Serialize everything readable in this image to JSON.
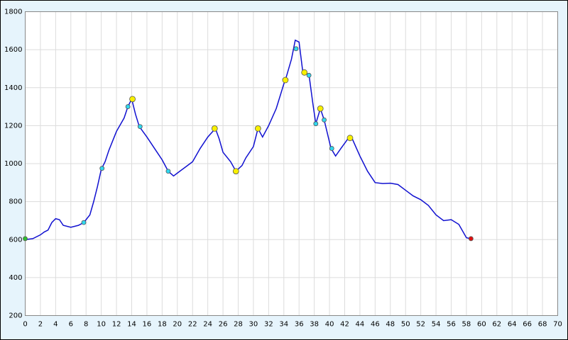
{
  "chart_data": {
    "type": "line",
    "color": "#1010d0",
    "x": [
      0,
      1,
      2,
      2.5,
      3,
      3.5,
      4,
      4.5,
      5,
      6,
      7,
      7.7,
      8.5,
      9,
      9.5,
      10,
      10.5,
      11,
      11.5,
      12,
      13,
      13.5,
      14,
      14.5,
      15,
      16,
      17,
      18,
      18.8,
      19.5,
      20,
      21,
      22,
      23,
      24,
      25,
      25.5,
      26,
      27,
      27.7,
      28.5,
      29,
      30,
      30.6,
      31.2,
      32,
      33,
      34,
      34.2,
      35,
      35.5,
      36,
      36.5,
      37.3,
      37.8,
      38.2,
      38.8,
      39.3,
      40.2,
      40.8,
      41.5,
      42.5,
      43,
      44,
      45,
      46,
      47,
      48,
      49,
      50,
      51,
      52,
      53,
      54,
      55,
      56,
      57,
      58,
      58.5
    ],
    "values": [
      600,
      605,
      625,
      640,
      650,
      690,
      710,
      705,
      675,
      665,
      675,
      690,
      730,
      800,
      880,
      970,
      1010,
      1070,
      1120,
      1170,
      1240,
      1300,
      1340,
      1260,
      1195,
      1140,
      1080,
      1020,
      960,
      935,
      950,
      980,
      1010,
      1080,
      1140,
      1185,
      1130,
      1060,
      1010,
      960,
      990,
      1030,
      1090,
      1185,
      1140,
      1200,
      1290,
      1420,
      1440,
      1550,
      1650,
      1640,
      1480,
      1470,
      1320,
      1210,
      1290,
      1230,
      1080,
      1040,
      1080,
      1135,
      1130,
      1040,
      960,
      900,
      895,
      897,
      890,
      860,
      830,
      810,
      780,
      730,
      700,
      705,
      680,
      610,
      605
    ],
    "markers": [
      {
        "color": "#30c030",
        "x": [
          0
        ],
        "values": [
          605
        ]
      },
      {
        "color": "#30d8f0",
        "x": [
          7.7,
          10.1,
          13.5,
          15.1,
          18.8,
          35.6,
          37.3,
          38.2,
          39.3,
          40.3
        ],
        "values": [
          690,
          975,
          1300,
          1195,
          960,
          1605,
          1465,
          1210,
          1230,
          1080
        ]
      },
      {
        "color": "#f8f000",
        "x": [
          14.1,
          24.9,
          27.7,
          30.6,
          34.2,
          36.7,
          38.8,
          42.7
        ],
        "values": [
          1340,
          1185,
          960,
          1185,
          1440,
          1480,
          1290,
          1135
        ]
      },
      {
        "color": "#e01010",
        "x": [
          58.6
        ],
        "values": [
          605
        ]
      }
    ],
    "xlim": [
      0,
      70
    ],
    "xticks": [
      0,
      2,
      4,
      6,
      8,
      10,
      12,
      14,
      16,
      18,
      20,
      22,
      24,
      26,
      28,
      30,
      32,
      34,
      36,
      38,
      40,
      42,
      44,
      46,
      48,
      50,
      52,
      54,
      56,
      58,
      60,
      62,
      64,
      66,
      68,
      70
    ],
    "ylim": [
      200,
      1800
    ],
    "yticks": [
      200,
      400,
      600,
      800,
      1000,
      1200,
      1400,
      1600,
      1800
    ],
    "grid": true
  }
}
